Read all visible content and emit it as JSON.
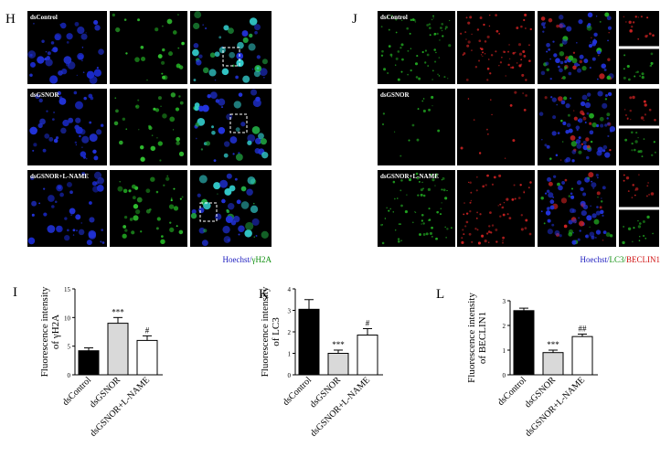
{
  "panels": {
    "h": "H",
    "j": "J"
  },
  "image_labels": [
    "dsControl",
    "dsGSNOR",
    "dsGSNOR+L-NAME"
  ],
  "caption_h": [
    {
      "text": "Hoechst/",
      "color": "#2020c0"
    },
    {
      "text": "γH2A",
      "color": "#109010"
    }
  ],
  "caption_j": [
    {
      "text": "Hoechst/",
      "color": "#2020c0"
    },
    {
      "text": "LC3/",
      "color": "#109010"
    },
    {
      "text": "BECLIN1",
      "color": "#d01010"
    }
  ],
  "chart_data": [
    {
      "type": "bar",
      "panel": "I",
      "ylabel": [
        "Fluorescence intensity",
        "of γH2A"
      ],
      "categories": [
        "dsControl",
        "dsGSNOR",
        "dsGSNOR+L-NAME"
      ],
      "values": [
        4.2,
        9,
        6
      ],
      "errors": [
        0.5,
        1,
        0.8
      ],
      "annotations": [
        null,
        "***",
        "#"
      ],
      "colors": [
        "#000000",
        "#d9d9d9",
        "#ffffff"
      ],
      "ylim": [
        0,
        15
      ],
      "yticks": [
        0,
        5,
        10,
        15
      ]
    },
    {
      "type": "bar",
      "panel": "K",
      "ylabel": [
        "Fluorescence intensity",
        "of LC3"
      ],
      "categories": [
        "dsControl",
        "dsGSNOR",
        "dsGSNOR+L-NAME"
      ],
      "values": [
        3.05,
        1,
        1.85
      ],
      "errors": [
        0.45,
        0.15,
        0.3
      ],
      "annotations": [
        null,
        "***",
        "#"
      ],
      "colors": [
        "#000000",
        "#d9d9d9",
        "#ffffff"
      ],
      "ylim": [
        0,
        4
      ],
      "yticks": [
        0,
        1,
        2,
        3,
        4
      ]
    },
    {
      "type": "bar",
      "panel": "L",
      "ylabel": [
        "Fluorescence intensity",
        "of BECLIN1"
      ],
      "categories": [
        "dsControl",
        "dsGSNOR",
        "dsGSNOR+L-NAME"
      ],
      "values": [
        2.6,
        0.9,
        1.55
      ],
      "errors": [
        0.1,
        0.1,
        0.1
      ],
      "annotations": [
        null,
        "***",
        "##"
      ],
      "colors": [
        "#000000",
        "#d9d9d9",
        "#ffffff"
      ],
      "ylim": [
        0,
        3
      ],
      "yticks": [
        0,
        1,
        2,
        3
      ]
    }
  ]
}
